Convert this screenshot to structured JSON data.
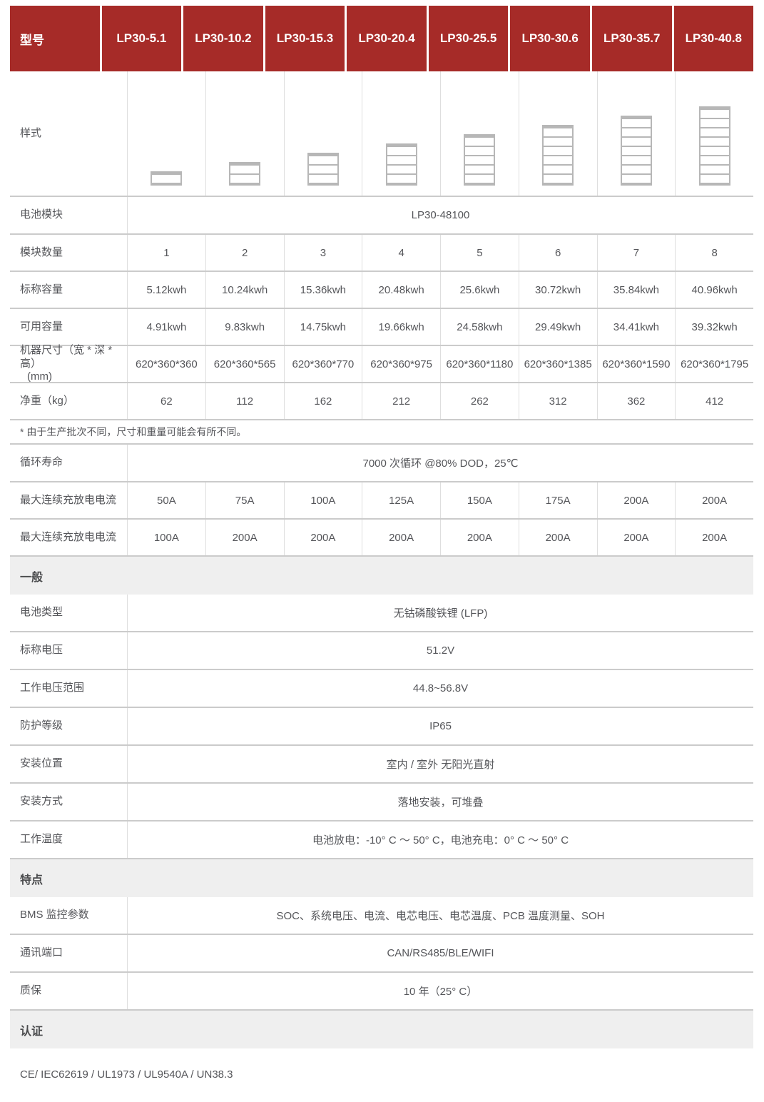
{
  "colors": {
    "header_red": "#a62b28",
    "section_gray": "#efefef",
    "text_gray": "#55565a",
    "module_gray": "#b7b7b7"
  },
  "table": {
    "header": {
      "label": "型号",
      "models": [
        "LP30-5.1",
        "LP30-10.2",
        "LP30-15.3",
        "LP30-20.4",
        "LP30-25.5",
        "LP30-30.6",
        "LP30-35.7",
        "LP30-40.8"
      ]
    },
    "style_row": {
      "label": "样式",
      "module_counts": [
        1,
        2,
        3,
        4,
        5,
        6,
        7,
        8
      ]
    },
    "rows": [
      {
        "type": "span",
        "label": "电池模块",
        "value": "LP30-48100"
      },
      {
        "type": "cells",
        "label": "模块数量",
        "values": [
          "1",
          "2",
          "3",
          "4",
          "5",
          "6",
          "7",
          "8"
        ]
      },
      {
        "type": "cells",
        "label": "标称容量",
        "values": [
          "5.12kwh",
          "10.24kwh",
          "15.36kwh",
          "20.48kwh",
          "25.6kwh",
          "30.72kwh",
          "35.84kwh",
          "40.96kwh"
        ]
      },
      {
        "type": "cells",
        "label": "可用容量",
        "values": [
          "4.91kwh",
          "9.83kwh",
          "14.75kwh",
          "19.66kwh",
          "24.58kwh",
          "29.49kwh",
          "34.41kwh",
          "39.32kwh"
        ]
      },
      {
        "type": "cells",
        "label": "机器尺寸（宽 * 深 * 高）",
        "label2": "(mm)",
        "values": [
          "620*360*360",
          "620*360*565",
          "620*360*770",
          "620*360*975",
          "620*360*1180",
          "620*360*1385",
          "620*360*1590",
          "620*360*1795"
        ]
      },
      {
        "type": "cells",
        "label": "净重（kg）",
        "values": [
          "62",
          "112",
          "162",
          "212",
          "262",
          "312",
          "362",
          "412"
        ]
      },
      {
        "type": "note",
        "text": "* 由于生产批次不同，尺寸和重量可能会有所不同。"
      },
      {
        "type": "span",
        "label": "循环寿命",
        "value": "7000 次循环 @80% DOD，25℃"
      },
      {
        "type": "cells",
        "label": "最大连续充放电电流",
        "values": [
          "50A",
          "75A",
          "100A",
          "125A",
          "150A",
          "175A",
          "200A",
          "200A"
        ]
      },
      {
        "type": "cells",
        "label": "最大连续充放电电流",
        "values": [
          "100A",
          "200A",
          "200A",
          "200A",
          "200A",
          "200A",
          "200A",
          "200A"
        ]
      },
      {
        "type": "section",
        "label": "一般"
      },
      {
        "type": "span",
        "label": "电池类型",
        "value": "无钴磷酸铁锂 (LFP)"
      },
      {
        "type": "span",
        "label": "标称电压",
        "value": "51.2V"
      },
      {
        "type": "span",
        "label": "工作电压范围",
        "value": "44.8~56.8V"
      },
      {
        "type": "span",
        "label": "防护等级",
        "value": "IP65"
      },
      {
        "type": "span",
        "label": "安装位置",
        "value": "室内 / 室外 无阳光直射"
      },
      {
        "type": "span",
        "label": "安装方式",
        "value": "落地安装，可堆叠"
      },
      {
        "type": "span",
        "label": "工作温度",
        "value": "电池放电：-10° C ～ 50° C，电池充电：0° C ～ 50° C"
      },
      {
        "type": "section",
        "label": "特点"
      },
      {
        "type": "span",
        "label": "BMS 监控参数",
        "value": "SOC、系统电压、电流、电芯电压、电芯温度、PCB 温度测量、SOH"
      },
      {
        "type": "span",
        "label": "通讯端口",
        "value": "CAN/RS485/BLE/WIFI"
      },
      {
        "type": "span",
        "label": "质保",
        "value": "10 年（25° C）"
      },
      {
        "type": "section",
        "label": "认证"
      }
    ],
    "footer": "CE/ IEC62619 / UL1973 / UL9540A / UN38.3"
  }
}
